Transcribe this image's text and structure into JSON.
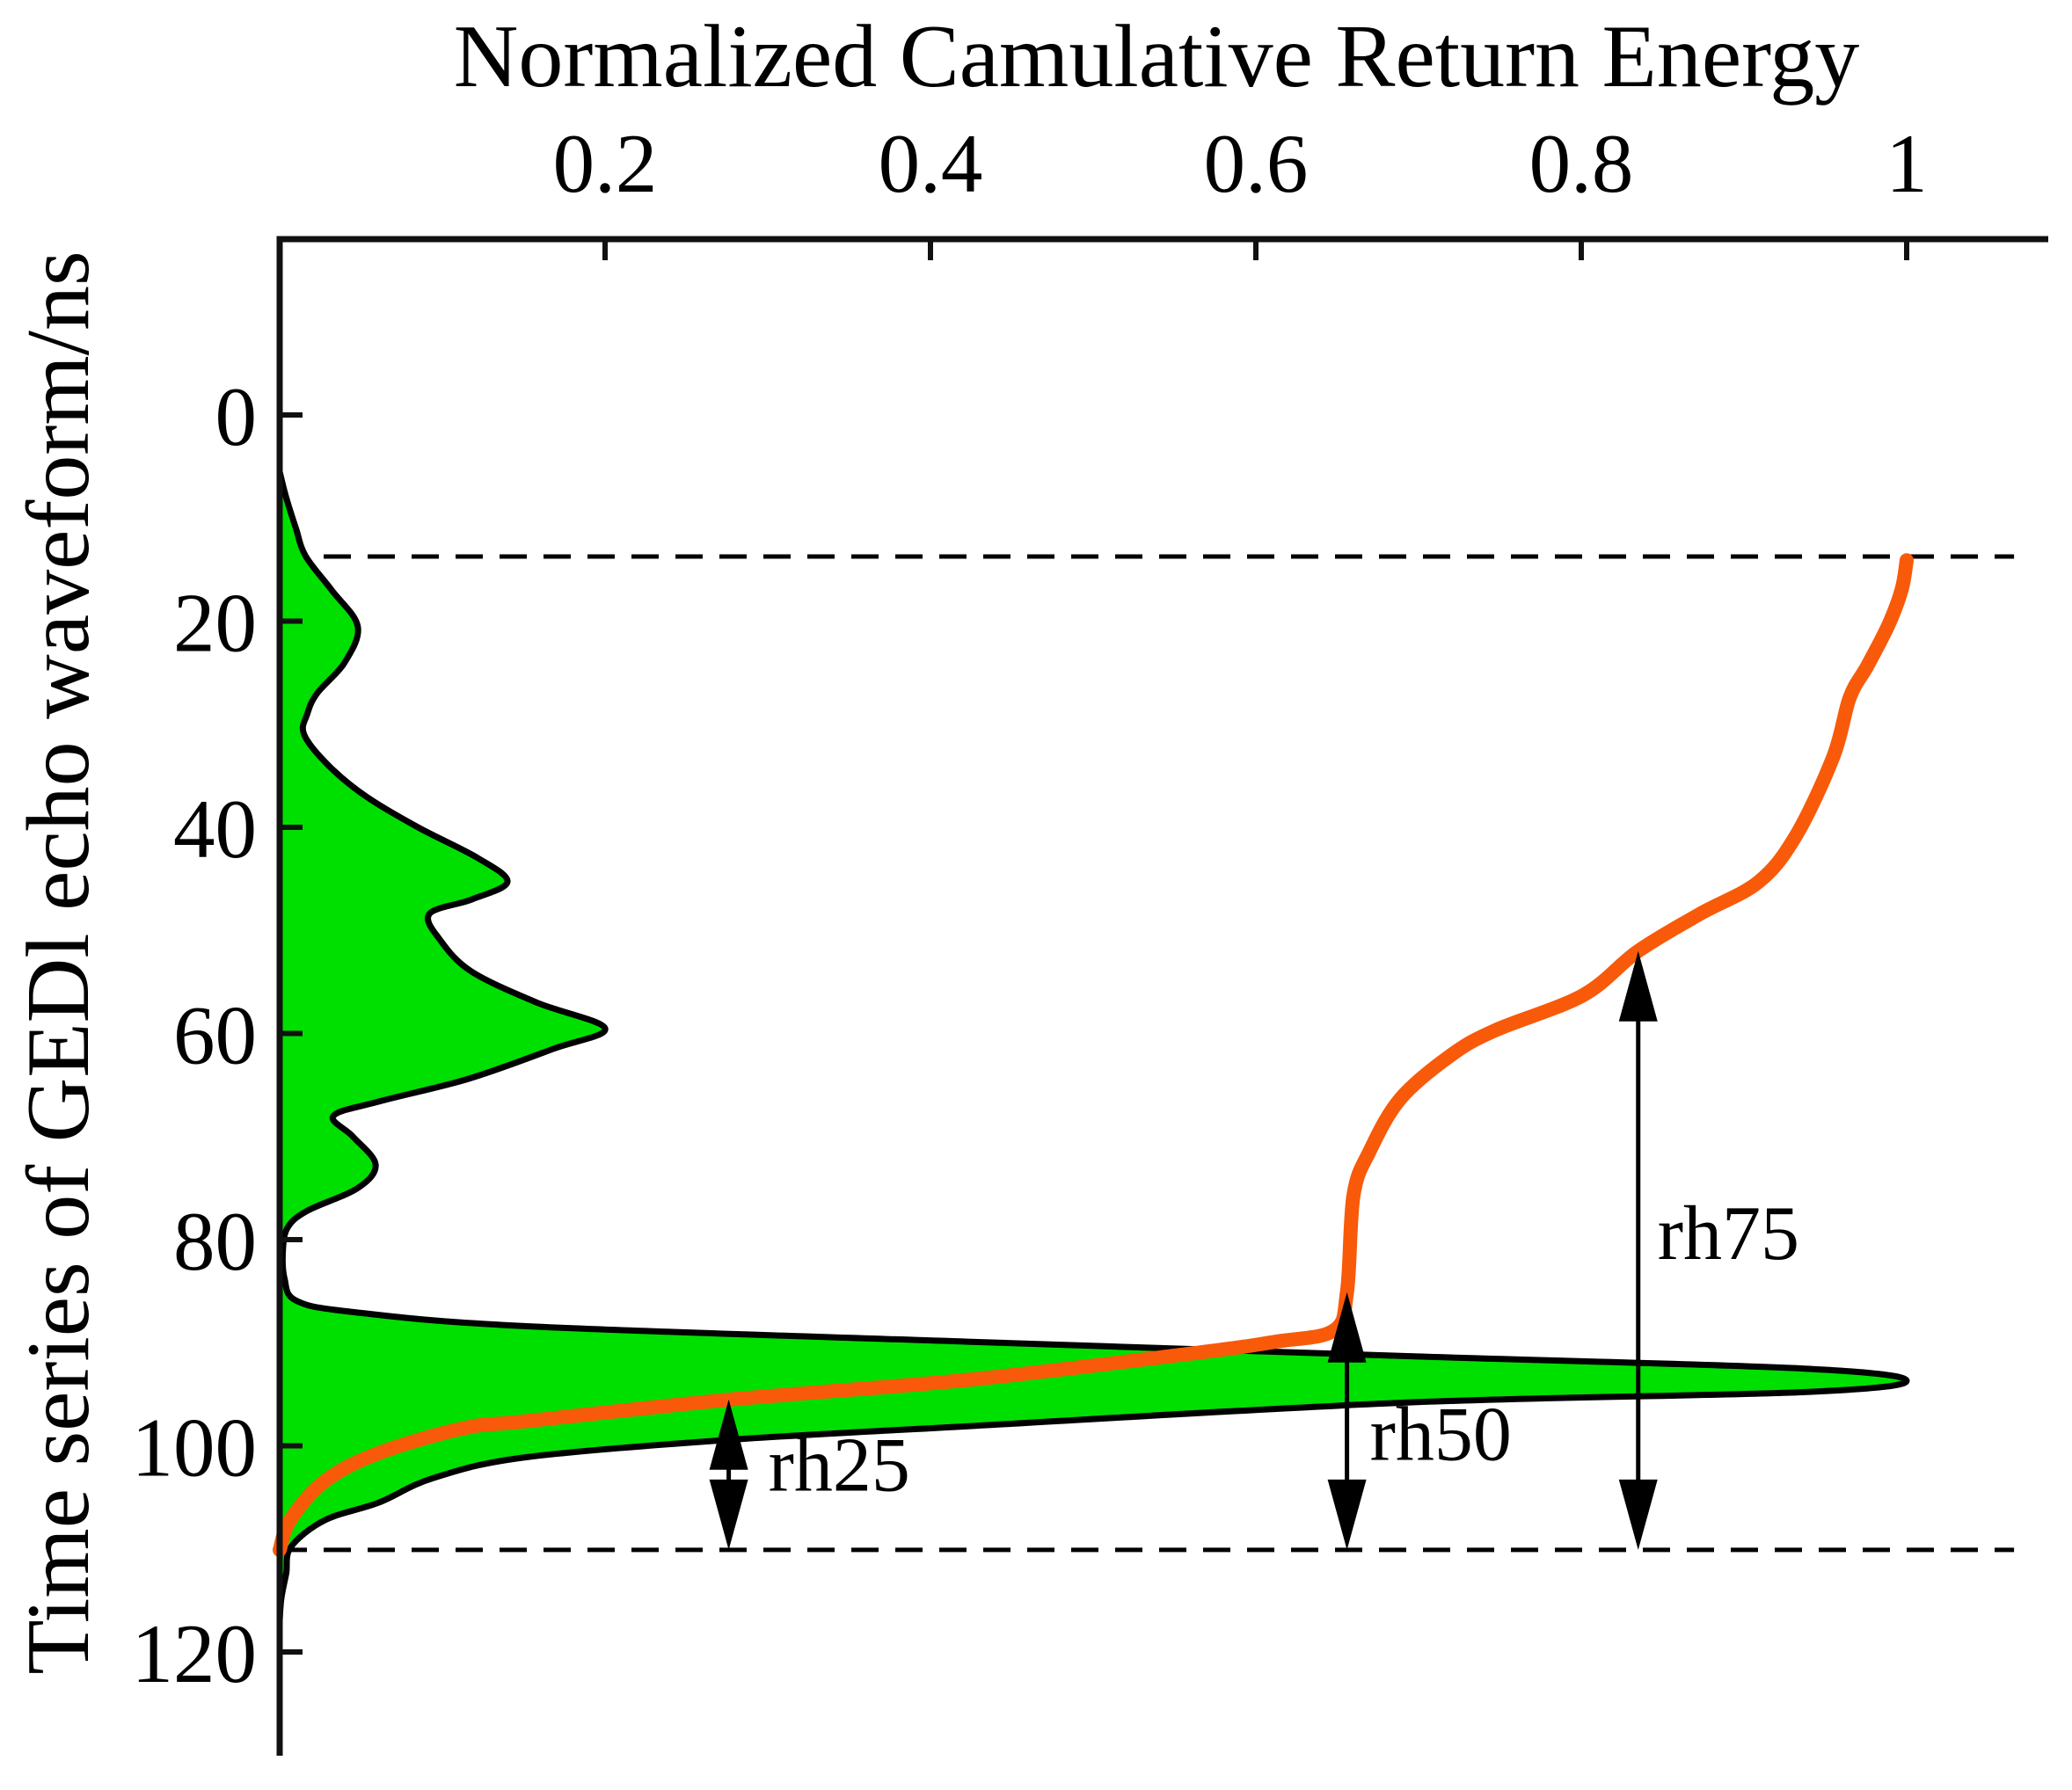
{
  "x_axis": {
    "label": "Normalized Camulative Return Energy",
    "ticks": [
      "0.2",
      "0.4",
      "0.6",
      "0.8",
      "1"
    ],
    "tick_values": [
      0.2,
      0.4,
      0.6,
      0.8,
      1
    ],
    "min": 0,
    "max": 1.087,
    "position": "top"
  },
  "y_axis": {
    "label": "Time series of GEDl echo waveform/ns",
    "ticks": [
      "0",
      "20",
      "40",
      "60",
      "80",
      "100",
      "120"
    ],
    "tick_values": [
      0,
      20,
      40,
      60,
      80,
      100,
      120
    ],
    "min": -17,
    "max": 130.1,
    "direction": "down"
  },
  "colors": {
    "waveform_fill": "#00e000",
    "waveform_outline": "#000000",
    "cumulative_line": "#f85a0a",
    "axis": "#111111",
    "text": "#000000",
    "background": "#ffffff"
  },
  "chart_data": {
    "type": "area+line",
    "title": "Normalized Camulative Return Energy",
    "xlabel": "Normalized Camulative Return Energy",
    "ylabel": "Time series of GEDl echo waveform/ns",
    "x_range": [
      0,
      1.087
    ],
    "y_range": [
      -17,
      130.1
    ],
    "y_direction": "down",
    "grid": false,
    "legend": "none",
    "point_format": [
      "time_ns",
      "value"
    ],
    "series": [
      {
        "name": "GEDI echo waveform",
        "style": "filled-area",
        "color": "#00e000",
        "outline": "#000000",
        "points": [
          [
            5.5,
            0
          ],
          [
            8,
            0.004
          ],
          [
            11,
            0.01
          ],
          [
            13.7,
            0.016
          ],
          [
            17,
            0.032
          ],
          [
            20.5,
            0.048
          ],
          [
            24,
            0.04
          ],
          [
            27,
            0.023
          ],
          [
            29,
            0.017
          ],
          [
            31,
            0.015
          ],
          [
            34,
            0.03
          ],
          [
            37,
            0.053
          ],
          [
            40,
            0.085
          ],
          [
            43,
            0.122
          ],
          [
            45.3,
            0.14
          ],
          [
            47,
            0.118
          ],
          [
            48.4,
            0.092
          ],
          [
            51,
            0.099
          ],
          [
            54,
            0.118
          ],
          [
            57,
            0.158
          ],
          [
            59.5,
            0.2
          ],
          [
            61.5,
            0.168
          ],
          [
            64.4,
            0.116
          ],
          [
            66.6,
            0.061
          ],
          [
            68,
            0.033
          ],
          [
            70,
            0.045
          ],
          [
            72.7,
            0.059
          ],
          [
            75,
            0.048
          ],
          [
            77.2,
            0.017
          ],
          [
            78.8,
            0.005
          ],
          [
            81,
            0.002
          ],
          [
            83.8,
            0.003
          ],
          [
            85.9,
            0.01
          ],
          [
            87,
            0.044
          ],
          [
            88.4,
            0.152
          ],
          [
            89.9,
            0.423
          ],
          [
            91.3,
            0.693
          ],
          [
            92.5,
            0.936
          ],
          [
            93.7,
            1.0
          ],
          [
            94.8,
            0.936
          ],
          [
            95.8,
            0.693
          ],
          [
            98.1,
            0.423
          ],
          [
            99.4,
            0.278
          ],
          [
            101.1,
            0.152
          ],
          [
            103.1,
            0.095
          ],
          [
            105.5,
            0.061
          ],
          [
            107.2,
            0.028
          ],
          [
            109.8,
            0.007
          ],
          [
            112.4,
            0.004
          ],
          [
            114.8,
            0.001
          ],
          [
            117,
            0
          ]
        ]
      },
      {
        "name": "Normalized cumulative return energy",
        "style": "line",
        "color": "#f85a0a",
        "points": [
          [
            110.1,
            0
          ],
          [
            107.2,
            0.0065
          ],
          [
            103.4,
            0.028
          ],
          [
            100.7,
            0.061
          ],
          [
            98.3,
            0.113
          ],
          [
            97.6,
            0.152
          ],
          [
            95.5,
            0.278
          ],
          [
            93.6,
            0.423
          ],
          [
            91.1,
            0.558
          ],
          [
            89.9,
            0.612
          ],
          [
            88.8,
            0.648
          ],
          [
            85.1,
            0.656
          ],
          [
            75.7,
            0.66
          ],
          [
            71.4,
            0.67
          ],
          [
            66.3,
            0.689
          ],
          [
            62.1,
            0.72
          ],
          [
            59.7,
            0.747
          ],
          [
            56.3,
            0.801
          ],
          [
            52.0,
            0.835
          ],
          [
            48.4,
            0.873
          ],
          [
            45.3,
            0.909
          ],
          [
            40.8,
            0.932
          ],
          [
            33.1,
            0.955
          ],
          [
            27.4,
            0.965
          ],
          [
            24.3,
            0.976
          ],
          [
            20.3,
            0.989
          ],
          [
            16.9,
            0.997
          ],
          [
            14.1,
            1.0
          ]
        ]
      }
    ],
    "reference_lines": [
      {
        "t": 13.73,
        "style": "dashed",
        "x_start": 0,
        "x_end": 1.066
      },
      {
        "t": 110.1,
        "style": "dashed",
        "x_start": 0,
        "x_end": 1.066
      }
    ],
    "annotations": [
      {
        "label": "rh25",
        "energy_x": 0.276,
        "t_top": 95.5,
        "t_bottom": 110.1,
        "label_t": 101.8,
        "label_dx": 45
      },
      {
        "label": "rh50",
        "energy_x": 0.656,
        "t_top": 85.1,
        "t_bottom": 110.1,
        "label_t": 98.8,
        "label_dx": 26
      },
      {
        "label": "rh75",
        "energy_x": 0.835,
        "t_top": 52.0,
        "t_bottom": 110.1,
        "label_t": 79.3,
        "label_dx": 22
      }
    ]
  }
}
